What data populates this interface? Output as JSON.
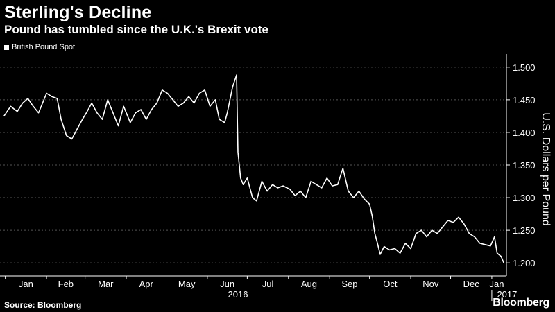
{
  "header": {
    "title": "Sterling's Decline",
    "subtitle": "Pound has tumbled since the U.K.'s Brexit vote"
  },
  "footer": {
    "source": "Source: Bloomberg",
    "brand": "Bloomberg"
  },
  "colors": {
    "background": "#000000",
    "line": "#ffffff",
    "grid": "#555555"
  },
  "chart_data": {
    "type": "line",
    "title": "Sterling's Decline",
    "subtitle": "Pound has tumbled since the U.K.'s Brexit vote",
    "ylabel": "U.S. Dollars per Pound",
    "xlabel": "",
    "ylim": [
      1.18,
      1.52
    ],
    "y_ticks": [
      "1.200",
      "1.250",
      "1.300",
      "1.350",
      "1.400",
      "1.450",
      "1.500"
    ],
    "x_tick_labels": [
      "Jan",
      "Feb",
      "Mar",
      "Apr",
      "May",
      "Jun",
      "Jul",
      "Aug",
      "Sep",
      "Oct",
      "Nov",
      "Dec",
      "Jan"
    ],
    "year_labels": [
      "2016",
      "2017"
    ],
    "grid": true,
    "legend_position": "top-left",
    "series": [
      {
        "name": "British Pound Spot",
        "x": [
          "2015-12-31",
          "2016-01-05",
          "2016-01-10",
          "2016-01-14",
          "2016-01-18",
          "2016-01-22",
          "2016-01-26",
          "2016-02-01",
          "2016-02-05",
          "2016-02-09",
          "2016-02-12",
          "2016-02-16",
          "2016-02-20",
          "2016-02-24",
          "2016-02-28",
          "2016-03-02",
          "2016-03-06",
          "2016-03-10",
          "2016-03-14",
          "2016-03-18",
          "2016-03-22",
          "2016-03-26",
          "2016-03-30",
          "2016-04-04",
          "2016-04-08",
          "2016-04-12",
          "2016-04-16",
          "2016-04-20",
          "2016-04-24",
          "2016-04-28",
          "2016-05-02",
          "2016-05-06",
          "2016-05-10",
          "2016-05-14",
          "2016-05-18",
          "2016-05-22",
          "2016-05-26",
          "2016-05-30",
          "2016-06-03",
          "2016-06-07",
          "2016-06-10",
          "2016-06-14",
          "2016-06-16",
          "2016-06-20",
          "2016-06-23",
          "2016-06-24",
          "2016-06-26",
          "2016-06-28",
          "2016-07-01",
          "2016-07-05",
          "2016-07-08",
          "2016-07-12",
          "2016-07-16",
          "2016-07-20",
          "2016-07-24",
          "2016-07-28",
          "2016-08-02",
          "2016-08-06",
          "2016-08-10",
          "2016-08-14",
          "2016-08-18",
          "2016-08-22",
          "2016-08-26",
          "2016-08-30",
          "2016-09-03",
          "2016-09-07",
          "2016-09-11",
          "2016-09-15",
          "2016-09-19",
          "2016-09-23",
          "2016-09-27",
          "2016-10-01",
          "2016-10-03",
          "2016-10-05",
          "2016-10-07",
          "2016-10-09",
          "2016-10-12",
          "2016-10-16",
          "2016-10-20",
          "2016-10-24",
          "2016-10-28",
          "2016-11-01",
          "2016-11-05",
          "2016-11-09",
          "2016-11-13",
          "2016-11-17",
          "2016-11-21",
          "2016-11-25",
          "2016-11-29",
          "2016-12-03",
          "2016-12-07",
          "2016-12-11",
          "2016-12-15",
          "2016-12-19",
          "2016-12-23",
          "2016-12-27",
          "2016-12-31",
          "2017-01-03",
          "2017-01-05",
          "2017-01-08",
          "2017-01-10"
        ],
        "y": [
          1.425,
          1.44,
          1.432,
          1.445,
          1.452,
          1.44,
          1.43,
          1.46,
          1.455,
          1.452,
          1.42,
          1.395,
          1.39,
          1.405,
          1.42,
          1.43,
          1.445,
          1.43,
          1.42,
          1.45,
          1.43,
          1.41,
          1.44,
          1.415,
          1.43,
          1.435,
          1.42,
          1.435,
          1.445,
          1.465,
          1.46,
          1.45,
          1.44,
          1.445,
          1.455,
          1.445,
          1.46,
          1.465,
          1.44,
          1.45,
          1.42,
          1.415,
          1.43,
          1.47,
          1.488,
          1.37,
          1.33,
          1.32,
          1.33,
          1.3,
          1.295,
          1.325,
          1.31,
          1.32,
          1.315,
          1.318,
          1.313,
          1.303,
          1.31,
          1.3,
          1.325,
          1.32,
          1.315,
          1.33,
          1.318,
          1.32,
          1.345,
          1.31,
          1.3,
          1.31,
          1.298,
          1.29,
          1.272,
          1.245,
          1.23,
          1.213,
          1.225,
          1.22,
          1.222,
          1.215,
          1.23,
          1.222,
          1.245,
          1.25,
          1.24,
          1.25,
          1.245,
          1.255,
          1.265,
          1.262,
          1.27,
          1.26,
          1.245,
          1.24,
          1.23,
          1.228,
          1.226,
          1.24,
          1.215,
          1.21,
          1.2
        ]
      }
    ]
  }
}
